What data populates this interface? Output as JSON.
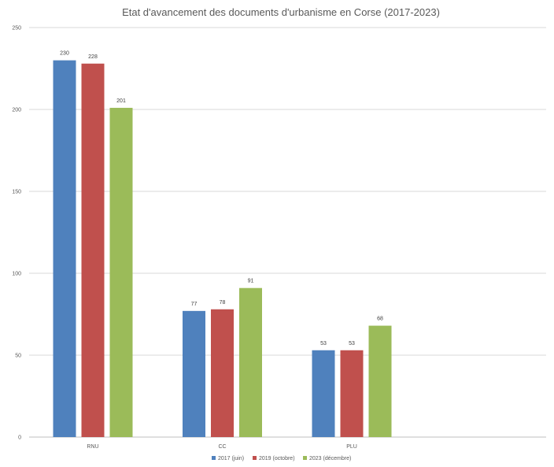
{
  "chart_data": {
    "type": "bar",
    "title": "Etat d'avancement des documents d'urbanisme en Corse (2017-2023)",
    "categories": [
      "RNU",
      "CC",
      "PLU"
    ],
    "series": [
      {
        "name": "2017 (juin)",
        "color": "#4f81bd",
        "values": [
          230,
          77,
          53
        ]
      },
      {
        "name": "2019 (octobre)",
        "color": "#c0504d",
        "values": [
          228,
          78,
          53
        ]
      },
      {
        "name": "2023 (décembre)",
        "color": "#9bbb59",
        "values": [
          201,
          91,
          68
        ]
      }
    ],
    "ylim": [
      0,
      250
    ],
    "yticks": [
      "0",
      "50",
      "100",
      "150",
      "200",
      "250"
    ],
    "grid": true,
    "legend_position": "bottom"
  }
}
